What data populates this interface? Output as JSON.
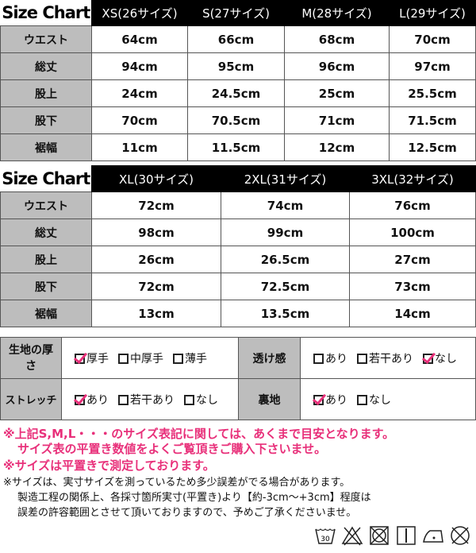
{
  "chart1": {
    "title": "Size Chart",
    "sizes": [
      "XS(26サイズ)",
      "S(27サイズ)",
      "M(28サイズ)",
      "L(29サイズ)"
    ],
    "rows": [
      {
        "label": "ウエスト",
        "values": [
          "64cm",
          "66cm",
          "68cm",
          "70cm"
        ]
      },
      {
        "label": "総丈",
        "values": [
          "94cm",
          "95cm",
          "96cm",
          "97cm"
        ]
      },
      {
        "label": "股上",
        "values": [
          "24cm",
          "24.5cm",
          "25cm",
          "25.5cm"
        ]
      },
      {
        "label": "股下",
        "values": [
          "70cm",
          "70.5cm",
          "71cm",
          "71.5cm"
        ]
      },
      {
        "label": "裾幅",
        "values": [
          "11cm",
          "11.5cm",
          "12cm",
          "12.5cm"
        ]
      }
    ]
  },
  "chart2": {
    "title": "Size Chart",
    "sizes": [
      "XL(30サイズ)",
      "2XL(31サイズ)",
      "3XL(32サイズ)"
    ],
    "rows": [
      {
        "label": "ウエスト",
        "values": [
          "72cm",
          "74cm",
          "76cm"
        ]
      },
      {
        "label": "総丈",
        "values": [
          "98cm",
          "99cm",
          "100cm"
        ]
      },
      {
        "label": "股上",
        "values": [
          "26cm",
          "26.5cm",
          "27cm"
        ]
      },
      {
        "label": "股下",
        "values": [
          "72cm",
          "72.5cm",
          "73cm"
        ]
      },
      {
        "label": "裾幅",
        "values": [
          "13cm",
          "13.5cm",
          "14cm"
        ]
      }
    ]
  },
  "fabric": {
    "thickness": {
      "label": "生地の厚さ",
      "options": [
        {
          "text": "厚手",
          "checked": true
        },
        {
          "text": "中厚手",
          "checked": false
        },
        {
          "text": "薄手",
          "checked": false
        }
      ]
    },
    "sheer": {
      "label": "透け感",
      "options": [
        {
          "text": "あり",
          "checked": false
        },
        {
          "text": "若干あり",
          "checked": false
        },
        {
          "text": "なし",
          "checked": true
        }
      ]
    },
    "stretch": {
      "label": "ストレッチ",
      "options": [
        {
          "text": "あり",
          "checked": true
        },
        {
          "text": "若干あり",
          "checked": false
        },
        {
          "text": "なし",
          "checked": false
        }
      ]
    },
    "lining": {
      "label": "裏地",
      "options": [
        {
          "text": "あり",
          "checked": true
        },
        {
          "text": "なし",
          "checked": false
        }
      ]
    }
  },
  "notes": {
    "red1": "※上記S,M,L・・・のサイズ表記に関しては、あくまで目安となります。",
    "red2": "サイズ表の平置き数値をよくご覧頂きご購入下さいませ。",
    "red3": "※サイズは平置きで測定しております。",
    "blk1": "※サイズは、実寸サイズを測っているため多少誤差がでる場合があります。",
    "blk2": "製造工程の関係上、各採寸箇所実寸(平置き)より【約-3cm〜+3cm】程度は",
    "blk3": "誤差の許容範囲とさせて頂いておりますので、予めご了承くださいませ。"
  },
  "care": {
    "wash_temp": "30",
    "icons": [
      "wash-30-icon",
      "no-bleach-icon",
      "no-tumble-dry-icon",
      "line-dry-icon",
      "iron-low-icon",
      "no-dry-clean-icon"
    ]
  },
  "colors": {
    "accent": "#e8307a",
    "label_bg": "#bdbdbd",
    "header_bg": "#000000"
  }
}
